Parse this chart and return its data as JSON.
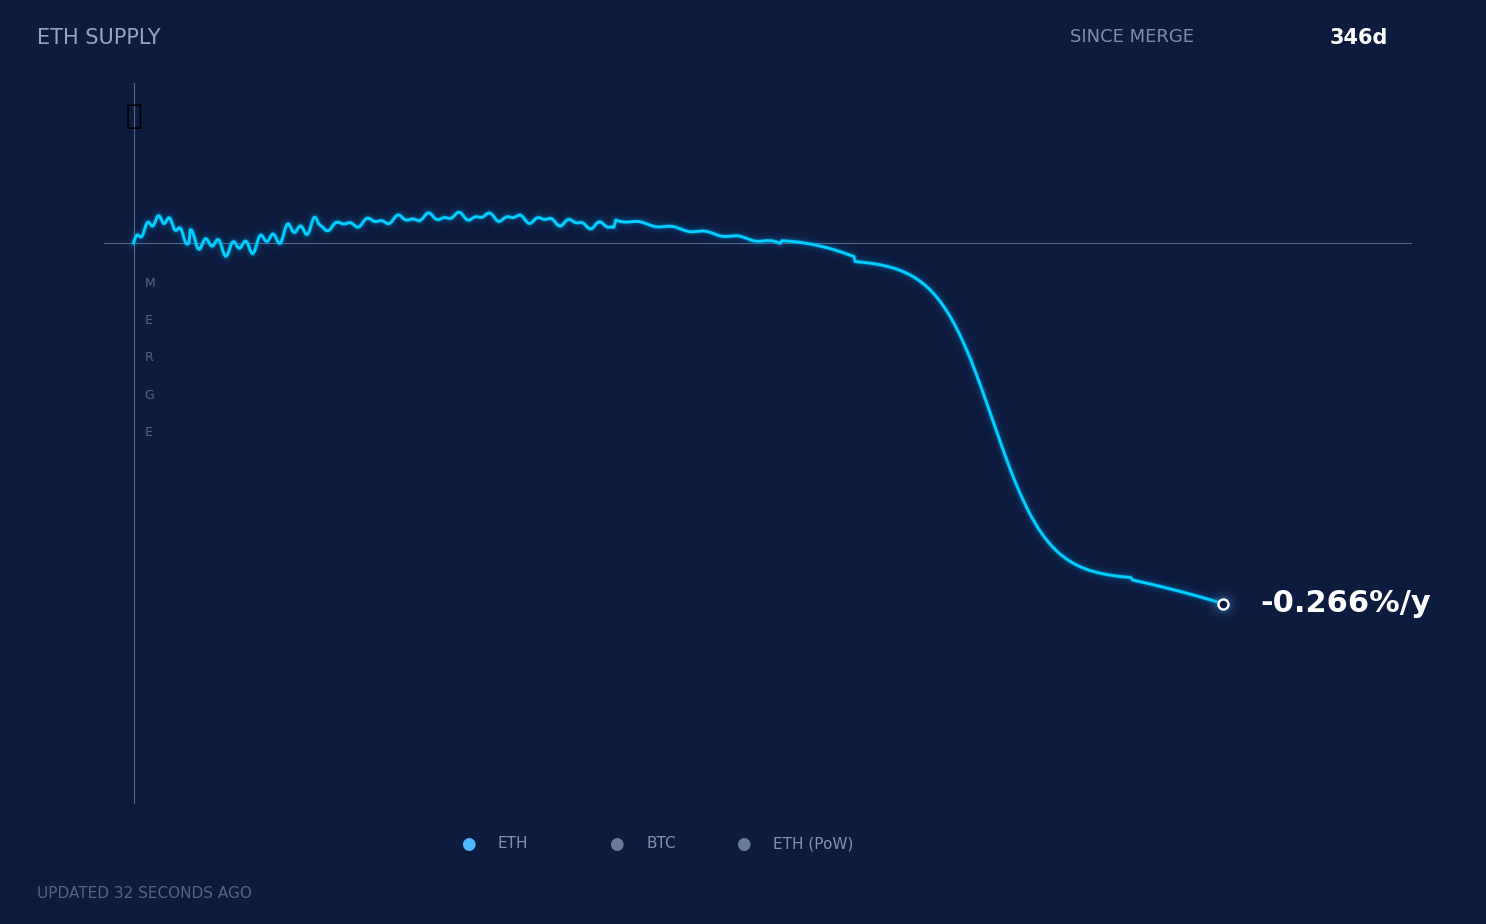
{
  "background_color": "#0d1b3e",
  "title_left": "ETH SUPPLY",
  "title_right_label": "SINCE MERGE",
  "title_right_value": "346d",
  "rate_label": "-0.266%/y",
  "merge_label": "MERGE",
  "footer": "UPDATED 32 SECONDS AGO",
  "line_color": "#00cfff",
  "line_glow_color": "#0099dd",
  "horizontal_line_color": "#8899bb",
  "vertical_line_color": "#8899bb",
  "title_color": "#b0bcd8",
  "title_right_value_color": "#ffffff",
  "rate_color": "#ffffff",
  "footer_color": "#7a8aaa",
  "merge_text_color": "#7a8aaa",
  "legend_eth_color": "#4db8ff",
  "legend_btc_color": "#6a7a9a",
  "legend_pow_color": "#6a7a9a",
  "legend_text_color": "#aabbcc"
}
